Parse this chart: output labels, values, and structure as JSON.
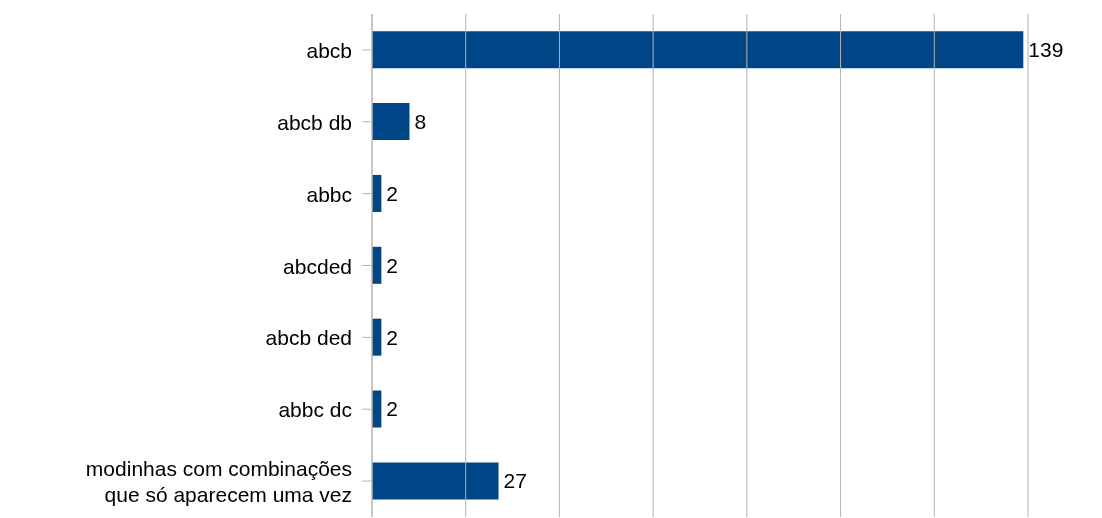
{
  "chart_data": {
    "type": "bar",
    "orientation": "horizontal",
    "categories": [
      "abcb",
      "abcb db",
      "abbc",
      "abcded",
      "abcb ded",
      "abbc dc",
      "modinhas com combinações que só aparecem uma vez"
    ],
    "values": [
      139,
      8,
      2,
      2,
      2,
      2,
      27
    ],
    "color": "#004586",
    "xlim": [
      0,
      140
    ],
    "xticks": [
      {
        "value": 0,
        "label": null
      },
      {
        "value": 20,
        "label": null
      },
      {
        "value": 40,
        "label": null
      },
      {
        "value": 60,
        "label": null
      },
      {
        "value": 80,
        "label": null
      },
      {
        "value": 100,
        "label": null
      },
      {
        "value": 120,
        "label": null
      },
      {
        "value": 140,
        "label": null
      }
    ],
    "tick_labels": "y",
    "grid": "x",
    "data_labels": true
  }
}
